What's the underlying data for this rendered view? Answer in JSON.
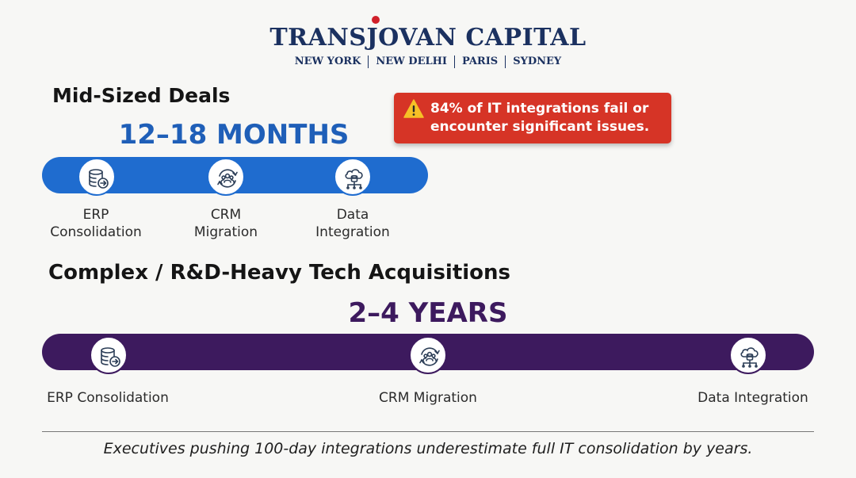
{
  "brand": {
    "title": "TRANSJOVAN CAPITAL",
    "cities": [
      "NEW YORK",
      "NEW DELHI",
      "PARIS",
      "SYDNEY"
    ]
  },
  "warning": {
    "text": "84% of IT integrations fail or encounter significant issues.",
    "icon": "warning-triangle-icon"
  },
  "mid_sized": {
    "title": "Mid-Sized Deals",
    "duration": "12–18 MONTHS",
    "color": "#1f6ccf",
    "steps": [
      {
        "line1": "ERP",
        "line2": "Consolidation",
        "icon": "database-arrow-icon"
      },
      {
        "line1": "CRM",
        "line2": "Migration",
        "icon": "people-sync-icon"
      },
      {
        "line1": "Data",
        "line2": "Integration",
        "icon": "cloud-network-icon"
      }
    ]
  },
  "complex": {
    "title": "Complex / R&D-Heavy Tech Acquisitions",
    "duration": "2–4 YEARS",
    "color": "#3d1a5e",
    "steps": [
      {
        "label": "ERP Consolidation",
        "icon": "database-arrow-icon"
      },
      {
        "label": "CRM Migration",
        "icon": "people-sync-icon"
      },
      {
        "label": "Data Integration",
        "icon": "cloud-network-icon"
      }
    ]
  },
  "footnote": "Executives pushing 100-day integrations underestimate full IT consolidation by years."
}
